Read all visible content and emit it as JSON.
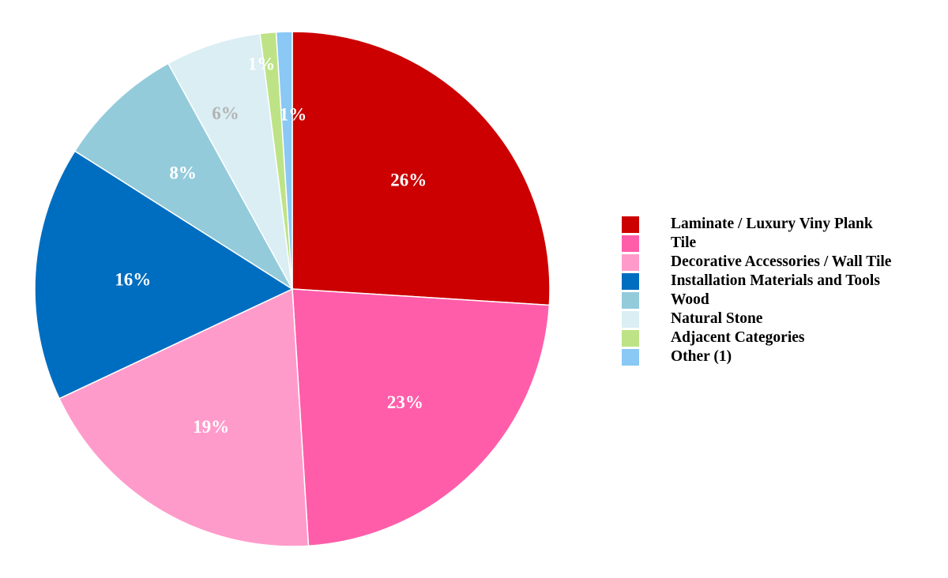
{
  "chart_data": {
    "type": "pie",
    "title": "",
    "legend_placement": "right",
    "start_angle_deg": 0,
    "direction": "clockwise",
    "slices": [
      {
        "name": "Laminate / Luxury Viny Plank",
        "value": 26,
        "label": "26%",
        "color": "#CC0000",
        "label_color": "#FFFFFF"
      },
      {
        "name": "Tile",
        "value": 23,
        "label": "23%",
        "color": "#FF5DAA",
        "label_color": "#FFFFFF"
      },
      {
        "name": "Decorative Accessories / Wall Tile",
        "value": 19,
        "label": "19%",
        "color": "#FF9BCB",
        "label_color": "#FFFFFF"
      },
      {
        "name": "Installation Materials and Tools",
        "value": 16,
        "label": "16%",
        "color": "#006EC0",
        "label_color": "#FFFFFF"
      },
      {
        "name": "Wood",
        "value": 8,
        "label": "8%",
        "color": "#93CBDB",
        "label_color": "#FFFFFF"
      },
      {
        "name": "Natural Stone",
        "value": 6,
        "label": "6%",
        "color": "#DAEEF3",
        "label_color": "#B3B3B3"
      },
      {
        "name": "Adjacent Categories",
        "value": 1,
        "label": "1%",
        "color": "#BDE386",
        "label_color": "#FFFFFF"
      },
      {
        "name": "Other (1)",
        "value": 1,
        "label": "1%",
        "color": "#8AC8F5",
        "label_color": "#FFFFFF"
      }
    ]
  }
}
